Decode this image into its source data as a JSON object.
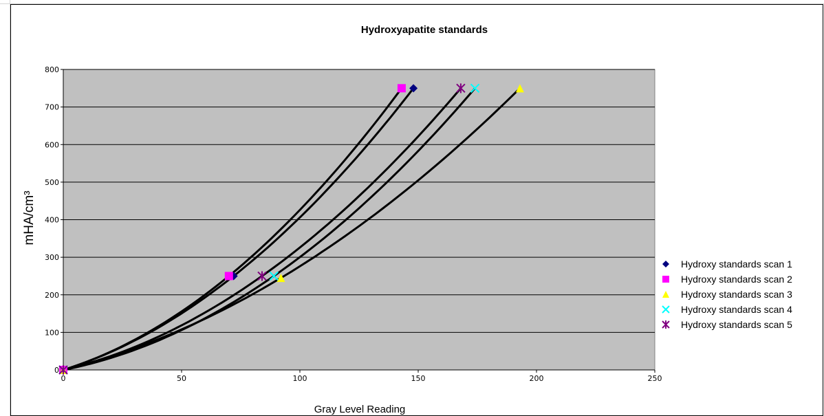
{
  "chart_data": {
    "type": "scatter",
    "title": "Hydroxyapatite standards",
    "xlabel": "Gray Level Reading",
    "ylabel": "mHA/cm³",
    "xlim": [
      0,
      250
    ],
    "ylim": [
      0,
      800
    ],
    "x_ticks": [
      0,
      50,
      100,
      150,
      200,
      250
    ],
    "y_ticks": [
      0,
      100,
      200,
      300,
      400,
      500,
      600,
      700,
      800
    ],
    "grid": "horizontal",
    "legend_position": "right",
    "plot_background": "#c0c0c0",
    "trendline_color": "#000000",
    "series": [
      {
        "name": "Hydroxy standards scan 1",
        "marker": "diamond",
        "color": "#000080",
        "points": [
          {
            "x": 0,
            "y": 0
          },
          {
            "x": 72,
            "y": 250
          },
          {
            "x": 148,
            "y": 750
          }
        ]
      },
      {
        "name": "Hydroxy standards scan 2",
        "marker": "square",
        "color": "#ff00ff",
        "points": [
          {
            "x": 0,
            "y": 0
          },
          {
            "x": 70,
            "y": 250
          },
          {
            "x": 143,
            "y": 750
          }
        ]
      },
      {
        "name": "Hydroxy standards scan 3",
        "marker": "triangle",
        "color": "#ffff00",
        "points": [
          {
            "x": 0,
            "y": 0
          },
          {
            "x": 92,
            "y": 245
          },
          {
            "x": 193,
            "y": 750
          }
        ]
      },
      {
        "name": "Hydroxy standards scan 4",
        "marker": "x",
        "color": "#00ffff",
        "points": [
          {
            "x": 0,
            "y": 0
          },
          {
            "x": 89,
            "y": 250
          },
          {
            "x": 174,
            "y": 750
          }
        ]
      },
      {
        "name": "Hydroxy standards scan 5",
        "marker": "star",
        "color": "#800080",
        "points": [
          {
            "x": 0,
            "y": 0
          },
          {
            "x": 84,
            "y": 250
          },
          {
            "x": 168,
            "y": 750
          }
        ]
      }
    ]
  }
}
